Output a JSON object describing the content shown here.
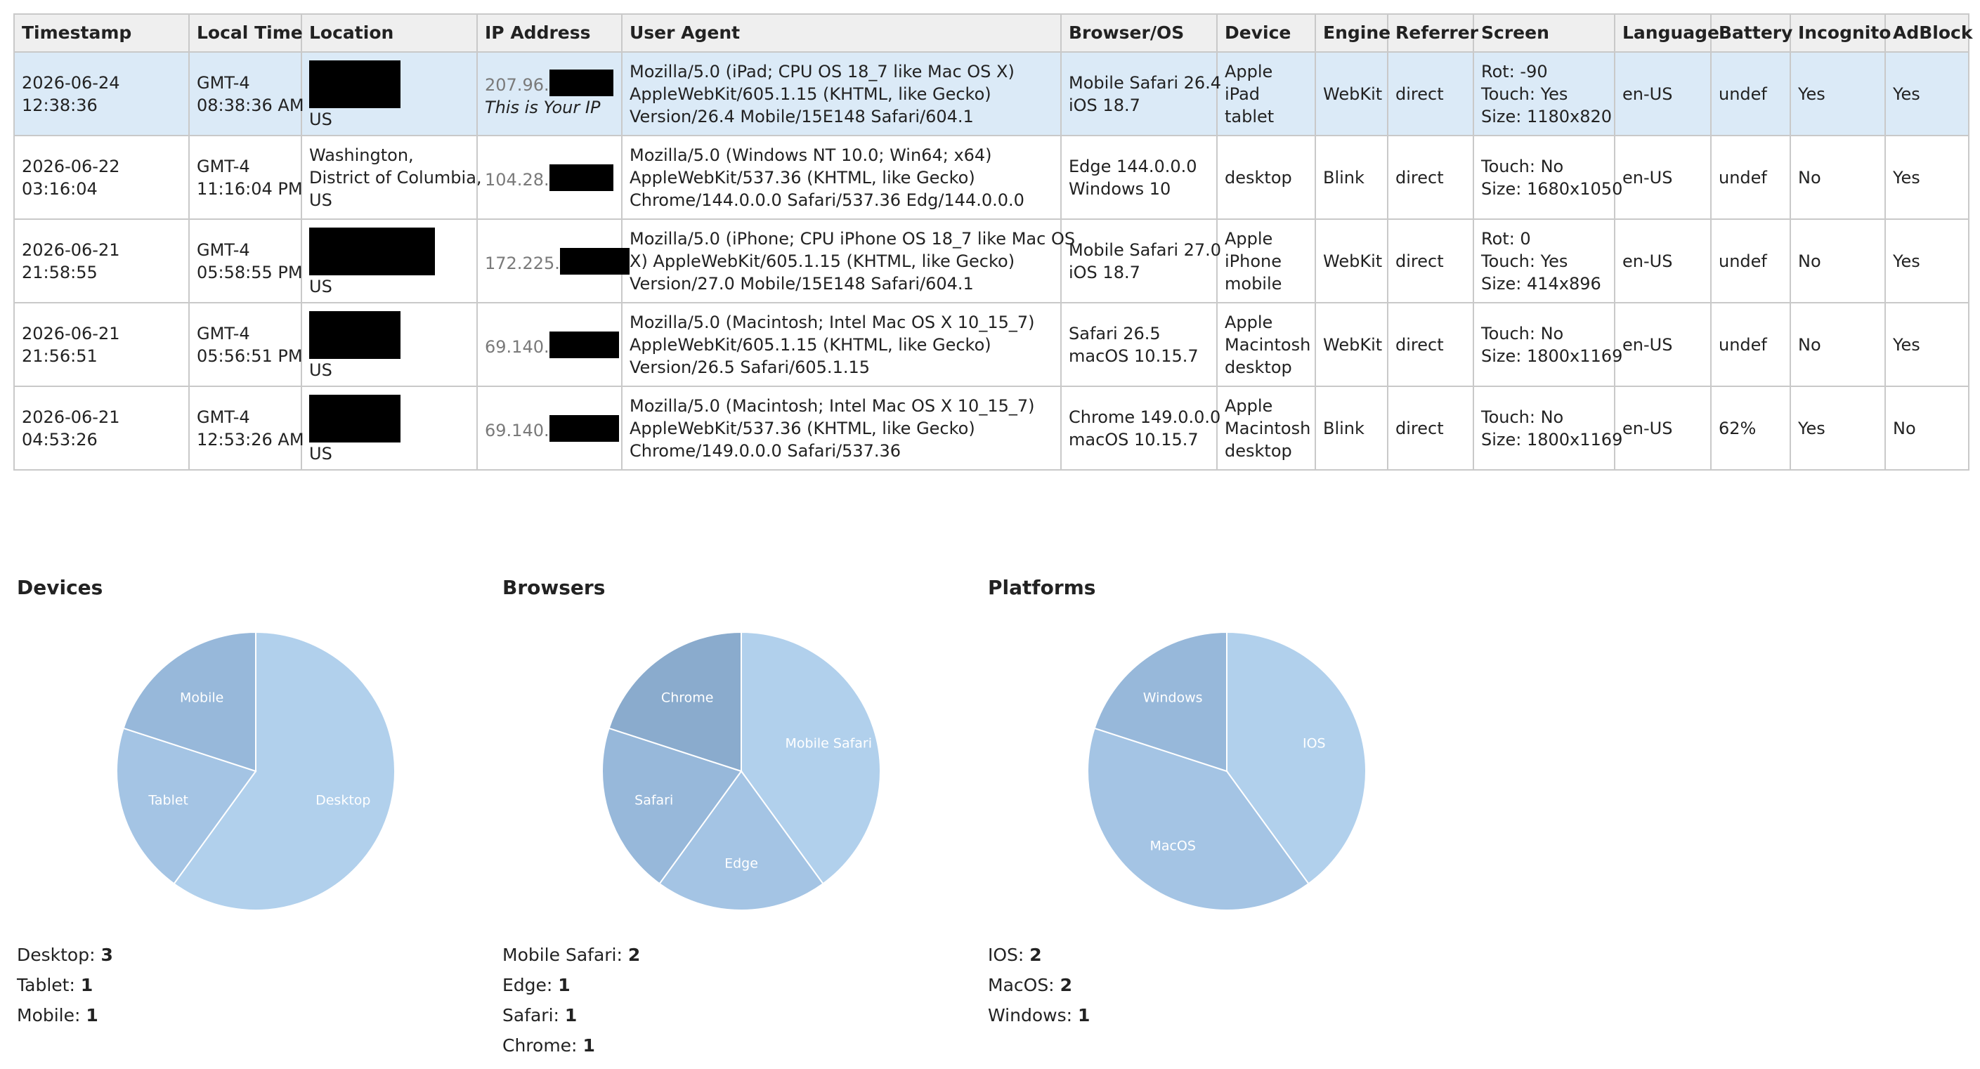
{
  "table": {
    "headers": [
      "Timestamp",
      "Local Time",
      "Location",
      "IP Address",
      "User Agent",
      "Browser/OS",
      "Device",
      "Engine",
      "Referrer",
      "Screen",
      "Language",
      "Battery",
      "Incognito",
      "AdBlock"
    ],
    "rows": [
      {
        "timestamp": "2026-06-24 12:38:36",
        "tz": "GMT-4",
        "local": "08:38:36 AM",
        "location_lines": [
          "US"
        ],
        "location_redacted": true,
        "ip_prefix": "207.96.",
        "ip_note": "This is Your IP",
        "ua": [
          "Mozilla/5.0 (iPad; CPU OS 18_7 like Mac OS X)",
          "AppleWebKit/605.1.15 (KHTML, like Gecko)",
          "Version/26.4 Mobile/15E148 Safari/604.1"
        ],
        "browser": "Mobile Safari 26.4",
        "os": "iOS 18.7",
        "device": [
          "Apple",
          "iPad",
          "tablet"
        ],
        "engine": "WebKit",
        "referrer": "direct",
        "screen": [
          "Rot: -90",
          "Touch: Yes",
          "Size: 1180x820"
        ],
        "language": "en-US",
        "battery": "undef",
        "incognito": "Yes",
        "adblock": "Yes"
      },
      {
        "timestamp": "2026-06-22 03:16:04",
        "tz": "GMT-4",
        "local": "11:16:04 PM",
        "location_lines": [
          "Washington,",
          "District of Columbia,",
          "US"
        ],
        "location_redacted": false,
        "ip_prefix": "104.28.",
        "ip_note": "",
        "ua": [
          "Mozilla/5.0 (Windows NT 10.0; Win64; x64)",
          "AppleWebKit/537.36 (KHTML, like Gecko)",
          "Chrome/144.0.0.0 Safari/537.36 Edg/144.0.0.0"
        ],
        "browser": "Edge 144.0.0.0",
        "os": "Windows 10",
        "device": [
          "desktop"
        ],
        "engine": "Blink",
        "referrer": "direct",
        "screen": [
          "Touch: No",
          "Size: 1680x1050"
        ],
        "language": "en-US",
        "battery": "undef",
        "incognito": "No",
        "adblock": "Yes"
      },
      {
        "timestamp": "2026-06-21 21:58:55",
        "tz": "GMT-4",
        "local": "05:58:55 PM",
        "location_lines": [
          "US"
        ],
        "location_redacted": true,
        "ip_prefix": "172.225.",
        "ip_note": "",
        "ua": [
          "Mozilla/5.0 (iPhone; CPU iPhone OS 18_7 like Mac OS",
          "X) AppleWebKit/605.1.15 (KHTML, like Gecko)",
          "Version/27.0 Mobile/15E148 Safari/604.1"
        ],
        "browser": "Mobile Safari 27.0",
        "os": "iOS 18.7",
        "device": [
          "Apple",
          "iPhone",
          "mobile"
        ],
        "engine": "WebKit",
        "referrer": "direct",
        "screen": [
          "Rot: 0",
          "Touch: Yes",
          "Size: 414x896"
        ],
        "language": "en-US",
        "battery": "undef",
        "incognito": "No",
        "adblock": "Yes"
      },
      {
        "timestamp": "2026-06-21 21:56:51",
        "tz": "GMT-4",
        "local": "05:56:51 PM",
        "location_lines": [
          "US"
        ],
        "location_redacted": true,
        "ip_prefix": "69.140.",
        "ip_note": "",
        "ua": [
          "Mozilla/5.0 (Macintosh; Intel Mac OS X 10_15_7)",
          "AppleWebKit/605.1.15 (KHTML, like Gecko)",
          "Version/26.5 Safari/605.1.15"
        ],
        "browser": "Safari 26.5",
        "os": "macOS 10.15.7",
        "device": [
          "Apple",
          "Macintosh",
          "desktop"
        ],
        "engine": "WebKit",
        "referrer": "direct",
        "screen": [
          "Touch: No",
          "Size: 1800x1169"
        ],
        "language": "en-US",
        "battery": "undef",
        "incognito": "No",
        "adblock": "Yes"
      },
      {
        "timestamp": "2026-06-21 04:53:26",
        "tz": "GMT-4",
        "local": "12:53:26 AM",
        "location_lines": [
          "US"
        ],
        "location_redacted": true,
        "ip_prefix": "69.140.",
        "ip_note": "",
        "ua": [
          "Mozilla/5.0 (Macintosh; Intel Mac OS X 10_15_7)",
          "AppleWebKit/537.36 (KHTML, like Gecko)",
          "Chrome/149.0.0.0 Safari/537.36"
        ],
        "browser": "Chrome 149.0.0.0",
        "os": "macOS 10.15.7",
        "device": [
          "Apple",
          "Macintosh",
          "desktop"
        ],
        "engine": "Blink",
        "referrer": "direct",
        "screen": [
          "Touch: No",
          "Size: 1800x1169"
        ],
        "language": "en-US",
        "battery": "62%",
        "incognito": "Yes",
        "adblock": "No"
      }
    ]
  },
  "charts": {
    "devices": {
      "title": "Devices"
    },
    "browsers": {
      "title": "Browsers"
    },
    "platforms": {
      "title": "Platforms"
    }
  },
  "chart_data": [
    {
      "type": "pie",
      "title": "Devices",
      "categories": [
        "Desktop",
        "Tablet",
        "Mobile"
      ],
      "values": [
        3,
        1,
        1
      ],
      "colors": [
        "#b1d0ec",
        "#a4c4e4",
        "#97b8da"
      ]
    },
    {
      "type": "pie",
      "title": "Browsers",
      "categories": [
        "Mobile Safari",
        "Edge",
        "Safari",
        "Chrome"
      ],
      "values": [
        2,
        1,
        1,
        1
      ],
      "colors": [
        "#b1d0ec",
        "#a4c4e4",
        "#97b8da",
        "#8aabcd"
      ]
    },
    {
      "type": "pie",
      "title": "Platforms",
      "categories": [
        "IOS",
        "MacOS",
        "Windows"
      ],
      "values": [
        2,
        2,
        1
      ],
      "colors": [
        "#b1d0ec",
        "#a4c4e4",
        "#97b8da"
      ]
    }
  ]
}
